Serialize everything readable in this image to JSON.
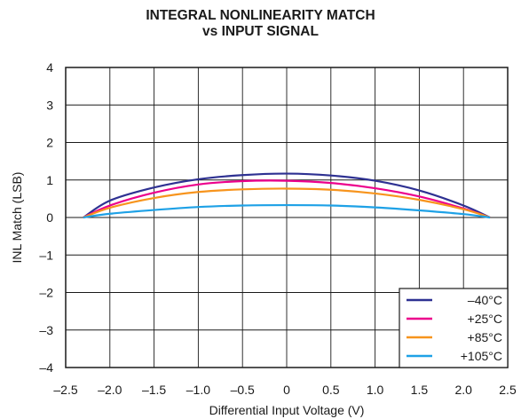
{
  "chart_data": {
    "type": "line",
    "title_line1": "INTEGRAL NONLINEARITY MATCH",
    "title_line2": "vs INPUT SIGNAL",
    "xlabel": "Differential Input Voltage (V)",
    "ylabel": "INL Match (LSB)",
    "xlim": [
      -2.5,
      2.5
    ],
    "ylim": [
      -4,
      4
    ],
    "xticks": [
      -2.5,
      -2.0,
      -1.5,
      -1.0,
      -0.5,
      0,
      0.5,
      1.0,
      1.5,
      2.0,
      2.5
    ],
    "xtick_labels": [
      "–2.5",
      "–2.0",
      "–1.5",
      "–1.0",
      "–0.5",
      "0",
      "0.5",
      "1.0",
      "1.5",
      "2.0",
      "2.5"
    ],
    "yticks": [
      -4,
      -3,
      -2,
      -1,
      0,
      1,
      2,
      3,
      4
    ],
    "ytick_labels": [
      "–4",
      "–3",
      "–2",
      "–1",
      "0",
      "1",
      "2",
      "3",
      "4"
    ],
    "grid": true,
    "legend_position": "bottom-right",
    "series": [
      {
        "name": "–40°C",
        "color": "#2e3192",
        "x": [
          -2.3,
          -2.0,
          -1.5,
          -1.0,
          -0.5,
          0,
          0.5,
          1.0,
          1.5,
          2.0,
          2.3
        ],
        "y": [
          0,
          0.45,
          0.8,
          1.02,
          1.13,
          1.17,
          1.12,
          0.98,
          0.72,
          0.32,
          0
        ]
      },
      {
        "name": "+25°C",
        "color": "#ec008c",
        "x": [
          -2.3,
          -2.0,
          -1.5,
          -1.0,
          -0.5,
          0,
          0.5,
          1.0,
          1.5,
          2.0,
          2.3
        ],
        "y": [
          0,
          0.32,
          0.66,
          0.88,
          0.97,
          0.98,
          0.92,
          0.78,
          0.56,
          0.24,
          0
        ]
      },
      {
        "name": "+85°C",
        "color": "#f7941d",
        "x": [
          -2.3,
          -2.0,
          -1.5,
          -1.0,
          -0.5,
          0,
          0.5,
          1.0,
          1.5,
          2.0,
          2.3
        ],
        "y": [
          0,
          0.26,
          0.52,
          0.68,
          0.75,
          0.77,
          0.74,
          0.64,
          0.47,
          0.22,
          0
        ]
      },
      {
        "name": "+105°C",
        "color": "#1ea1e6",
        "x": [
          -2.3,
          -2.0,
          -1.5,
          -1.0,
          -0.5,
          0,
          0.5,
          1.0,
          1.5,
          2.0,
          2.3
        ],
        "y": [
          0,
          0.1,
          0.2,
          0.28,
          0.32,
          0.33,
          0.32,
          0.27,
          0.19,
          0.09,
          0
        ]
      }
    ]
  }
}
